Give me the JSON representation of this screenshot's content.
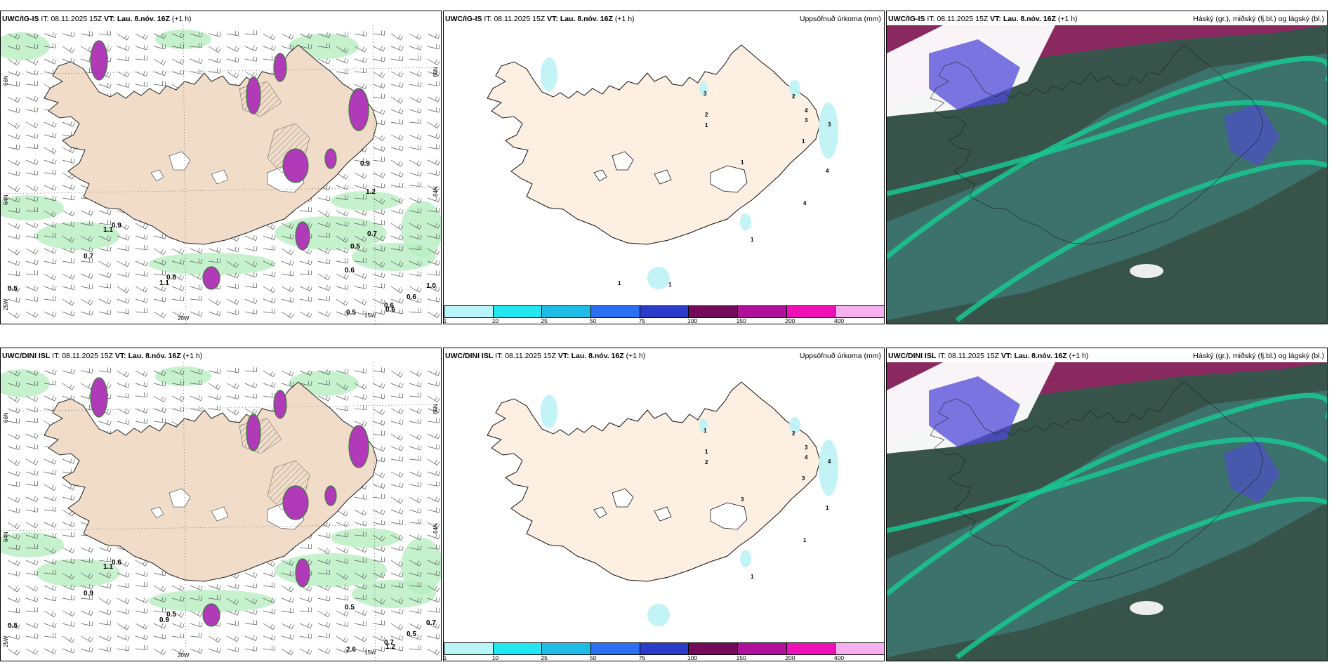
{
  "rows": [
    {
      "model": "UWC/IG-IS",
      "panels": [
        {
          "kind": "wind",
          "model": "UWC/IG-IS",
          "it_label": "IT:",
          "it": "08.11.2025 15Z",
          "vt_label": "VT:",
          "vt": "Lau. 8.nóv. 16Z",
          "lead": "(+1 h)",
          "lat_labels": [
            "66N",
            "64N",
            "25W"
          ],
          "lon_labels": [
            "20W",
            "15W"
          ],
          "right_lat": [
            "66N",
            "64N"
          ],
          "values": [
            "0.5",
            "0.7",
            "1.1",
            "0.9",
            "1.1",
            "0.8",
            "0.6",
            "0.6",
            "0.5",
            "0.6",
            "0.6",
            "1.0",
            "1.2",
            "0.9",
            "0.5",
            "0.7"
          ]
        },
        {
          "kind": "precip",
          "model": "UWC/IG-IS",
          "it_label": "IT:",
          "it": "08.11.2025 15Z",
          "vt_label": "VT:",
          "vt": "Lau. 8.nóv. 16Z",
          "lead": "(+1 h)",
          "right_label": "Uppsöfnuð úrkoma (mm)",
          "values": [
            "3",
            "2",
            "1",
            "2",
            "4",
            "3",
            "3",
            "1",
            "1",
            "4",
            "4",
            "1",
            "1",
            "1"
          ]
        },
        {
          "kind": "cloud",
          "model": "UWC/IG-IS",
          "it_label": "IT:",
          "it": "08.11.2025 15Z",
          "vt_label": "VT:",
          "vt": "Lau. 8.nóv. 16Z",
          "lead": "(+1 h)",
          "right_label": "Háský (gr.), miðský (fj.bl.) og lágský (bl.)"
        }
      ]
    },
    {
      "model": "UWC/DINI ISL",
      "panels": [
        {
          "kind": "wind",
          "model": "UWC/DINI ISL",
          "it_label": "IT:",
          "it": "08.11.2025 15Z",
          "vt_label": "VT:",
          "vt": "Lau. 8.nóv. 16Z",
          "lead": "(+1 h)",
          "lat_labels": [
            "66N",
            "64N",
            "25W"
          ],
          "lon_labels": [
            "20W",
            "15W"
          ],
          "right_lat": [
            "66N",
            "64N"
          ],
          "values": [
            "0.5",
            "0.9",
            "1.1",
            "0.6",
            "0.9",
            "0.5",
            "0.5",
            "0.7",
            "2.6",
            "1.2",
            "0.5",
            "0.7"
          ]
        },
        {
          "kind": "precip",
          "model": "UWC/DINI ISL",
          "it_label": "IT:",
          "it": "08.11.2025 15Z",
          "vt_label": "VT:",
          "vt": "Lau. 8.nóv. 16Z",
          "lead": "(+1 h)",
          "right_label": "Uppsöfnuð úrkoma (mm)",
          "values": [
            "1",
            "1",
            "2",
            "2",
            "3",
            "4",
            "4",
            "3",
            "3",
            "1",
            "1",
            "1"
          ]
        },
        {
          "kind": "cloud",
          "model": "UWC/DINI ISL",
          "it_label": "IT:",
          "it": "08.11.2025 15Z",
          "vt_label": "VT:",
          "vt": "Lau. 8.nóv. 16Z",
          "lead": "(+1 h)",
          "right_label": "Háský (gr.), miðský (fj.bl.) og lágský (bl.)"
        }
      ]
    }
  ],
  "precip_legend": {
    "colors": [
      "#b8f4f8",
      "#22e6f0",
      "#20bce8",
      "#2c6ff0",
      "#2a3cc8",
      "#740a5a",
      "#b0109a",
      "#f010b8",
      "#f6b0f0"
    ],
    "ticks": [
      "1",
      "10",
      "25",
      "50",
      "75",
      "100",
      "150",
      "200",
      "400"
    ]
  },
  "colors": {
    "land": "#f0dcc8",
    "land_precip": "#fdf0e2",
    "wind_green": "#b8eec0",
    "magenta": "#b03ab8",
    "cloud_high": "#18c890",
    "cloud_mid": "#5048d8",
    "cloud_low": "#2e5848",
    "cloud_bg": "#8a2860"
  }
}
